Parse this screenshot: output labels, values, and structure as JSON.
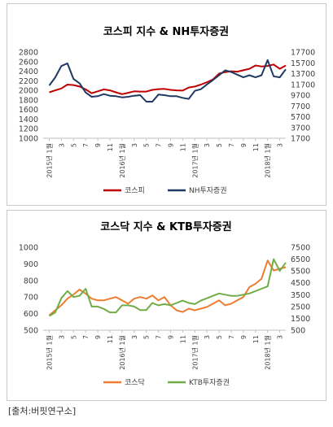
{
  "source": "[출처:버핏연구소]",
  "chart_data": [
    {
      "type": "line",
      "title": "코스피 지수 & NH투자증권",
      "categories": [
        "2015년 1월",
        "3",
        "5",
        "7",
        "9",
        "11",
        "2016년 1월",
        "3",
        "5",
        "7",
        "9",
        "11",
        "2017년 1월",
        "3",
        "5",
        "7",
        "9",
        "11",
        "2018년 1월",
        "3"
      ],
      "left_axis": {
        "min": 1000,
        "max": 2800,
        "step": 200
      },
      "right_axis": {
        "min": 1700,
        "max": 17700,
        "step": 2000
      },
      "grid": false,
      "legend": "bottom",
      "series": [
        {
          "name": "코스피",
          "axis": "left",
          "color": "#c00000",
          "x": [
            0,
            0.5,
            1,
            1.5,
            2,
            2.5,
            3,
            3.5,
            4,
            4.5,
            5,
            5.5,
            6,
            6.5,
            7,
            7.5,
            8,
            8.5,
            9,
            9.5,
            10,
            10.5,
            11,
            11.5,
            12,
            12.5,
            13,
            13.5,
            14,
            14.5,
            15,
            15.5,
            16,
            16.5,
            17,
            17.5,
            18,
            18.5,
            19,
            19.5
          ],
          "values": [
            1960,
            2000,
            2040,
            2120,
            2110,
            2080,
            2020,
            1940,
            1980,
            2020,
            2000,
            1960,
            1920,
            1950,
            1980,
            1975,
            1975,
            2010,
            2025,
            2030,
            2010,
            2000,
            1995,
            2060,
            2080,
            2120,
            2170,
            2230,
            2350,
            2380,
            2400,
            2390,
            2420,
            2450,
            2520,
            2500,
            2510,
            2540,
            2450,
            2520
          ]
        },
        {
          "name": "NH투자증권",
          "axis": "right",
          "color": "#1f3864",
          "x": [
            0,
            0.5,
            1,
            1.5,
            2,
            2.5,
            3,
            3.5,
            4,
            4.5,
            5,
            5.5,
            6,
            6.5,
            7,
            7.5,
            8,
            8.5,
            9,
            9.5,
            10,
            10.5,
            11,
            11.5,
            12,
            12.5,
            13,
            13.5,
            14,
            14.5,
            15,
            15.5,
            16,
            16.5,
            17,
            17.5,
            18,
            18.5,
            19,
            19.5
          ],
          "values": [
            11500,
            13000,
            15100,
            15600,
            12700,
            11900,
            10200,
            9400,
            9500,
            9900,
            9600,
            9500,
            9300,
            9400,
            9600,
            9700,
            8500,
            8500,
            9800,
            9700,
            9500,
            9500,
            9200,
            9000,
            10500,
            10800,
            11700,
            12500,
            13400,
            14300,
            14000,
            13500,
            13000,
            13400,
            13000,
            13400,
            16200,
            13200,
            13000,
            14500
          ]
        }
      ]
    },
    {
      "type": "line",
      "title": "코스닥 지수 & KTB투자증권",
      "categories": [
        "2015년 1월",
        "3",
        "5",
        "7",
        "9",
        "11",
        "2016년 1월",
        "3",
        "5",
        "7",
        "9",
        "11",
        "2017년 1월",
        "3",
        "5",
        "7",
        "9",
        "11",
        "2018년 1월",
        "3"
      ],
      "left_axis": {
        "min": 500,
        "max": 1000,
        "step": 100
      },
      "right_axis": {
        "min": 500,
        "max": 7500,
        "step": 1000
      },
      "grid": false,
      "legend": "bottom",
      "series": [
        {
          "name": "코스닥",
          "axis": "left",
          "color": "#ed7d31",
          "x": [
            0,
            0.5,
            1,
            1.5,
            2,
            2.5,
            3,
            3.5,
            4,
            4.5,
            5,
            5.5,
            6,
            6.5,
            7,
            7.5,
            8,
            8.5,
            9,
            9.5,
            10,
            10.5,
            11,
            11.5,
            12,
            12.5,
            13,
            13.5,
            14,
            14.5,
            15,
            15.5,
            16,
            16.5,
            17,
            17.5,
            18,
            18.5,
            19,
            19.5
          ],
          "values": [
            590,
            620,
            650,
            690,
            715,
            745,
            720,
            690,
            680,
            680,
            690,
            700,
            680,
            660,
            690,
            700,
            690,
            710,
            680,
            700,
            650,
            620,
            610,
            630,
            620,
            630,
            640,
            660,
            680,
            650,
            660,
            680,
            700,
            760,
            780,
            810,
            920,
            860,
            870,
            880
          ]
        },
        {
          "name": "KTB투자증권",
          "axis": "right",
          "color": "#70ad47",
          "x": [
            0,
            0.5,
            1,
            1.5,
            2,
            2.5,
            3,
            3.5,
            4,
            4.5,
            5,
            5.5,
            6,
            6.5,
            7,
            7.5,
            8,
            8.5,
            9,
            9.5,
            10,
            10.5,
            11,
            11.5,
            12,
            12.5,
            13,
            13.5,
            14,
            14.5,
            15,
            15.5,
            16,
            16.5,
            17,
            17.5,
            18,
            18.5,
            19,
            19.5
          ],
          "values": [
            1700,
            2000,
            3200,
            3800,
            3300,
            3400,
            4000,
            2500,
            2500,
            2300,
            2000,
            2000,
            2600,
            2600,
            2500,
            2200,
            2200,
            2800,
            2600,
            2700,
            2600,
            2800,
            3000,
            2800,
            2700,
            3000,
            3200,
            3400,
            3600,
            3500,
            3400,
            3400,
            3500,
            3600,
            3800,
            4000,
            4200,
            6500,
            5500,
            6200
          ]
        }
      ]
    }
  ]
}
